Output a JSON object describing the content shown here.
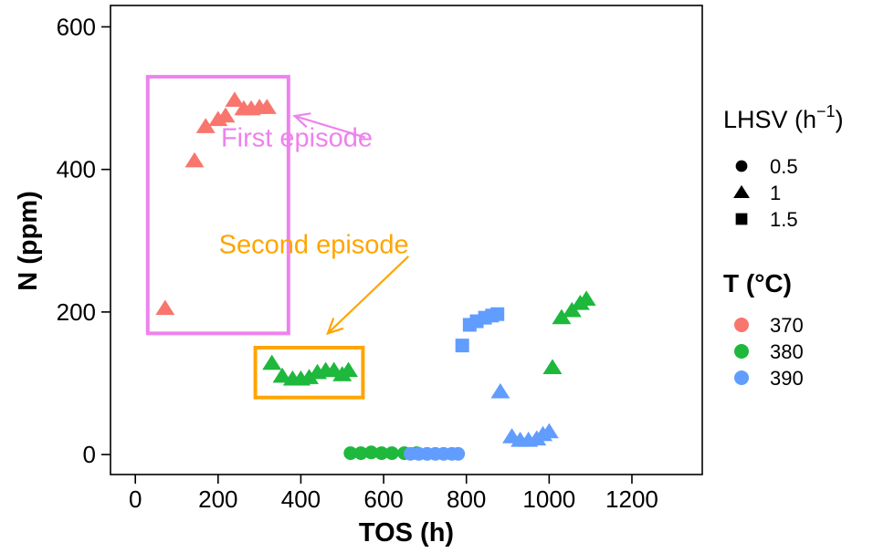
{
  "chart_data": {
    "type": "scatter",
    "xlabel": "TOS (h)",
    "ylabel": "N (ppm)",
    "xlim": [
      -60,
      1370
    ],
    "ylim": [
      -28,
      630
    ],
    "xticks": [
      0,
      200,
      400,
      600,
      800,
      1000,
      1200
    ],
    "yticks": [
      0,
      200,
      400,
      600
    ],
    "grid": false,
    "legend_position": "right",
    "shape_legend": {
      "title": "LHSV (h",
      "title_sup": "−1",
      "title_end": ")",
      "items": [
        {
          "label": "0.5",
          "shape": "circle"
        },
        {
          "label": "1",
          "shape": "triangle"
        },
        {
          "label": "1.5",
          "shape": "square"
        }
      ]
    },
    "color_legend": {
      "title": "T (°C)",
      "items": [
        {
          "label": "370",
          "color": "#F8766D"
        },
        {
          "label": "380",
          "color": "#1DB83C"
        },
        {
          "label": "390",
          "color": "#619CFF"
        }
      ]
    },
    "annotations": [
      {
        "text": "First episode",
        "color": "#EE82EE",
        "box": {
          "x0": 30,
          "x1": 370,
          "y0": 170,
          "y1": 530
        },
        "text_at": {
          "x": 560,
          "y": 445
        },
        "arrow_from": {
          "x": 555,
          "y": 445
        },
        "arrow_to": {
          "x": 385,
          "y": 475
        }
      },
      {
        "text": "Second episode",
        "color": "#FFA500",
        "box": {
          "x0": 290,
          "x1": 550,
          "y0": 80,
          "y1": 150
        },
        "text_at": {
          "x": 555,
          "y": 295
        },
        "arrow_from": {
          "x": 660,
          "y": 278
        },
        "arrow_to": {
          "x": 465,
          "y": 170
        }
      }
    ],
    "series": [
      {
        "T": "370",
        "LHSV": "1",
        "shape": "triangle",
        "color": "#F8766D",
        "x": [
          72,
          143,
          170,
          200,
          218,
          240,
          262,
          280,
          300,
          318
        ],
        "y": [
          205,
          412,
          460,
          470,
          475,
          497,
          485,
          485,
          487,
          487
        ]
      },
      {
        "T": "380",
        "LHSV": "0.5",
        "shape": "circle",
        "color": "#1DB83C",
        "x": [
          520,
          545,
          570,
          595,
          620,
          650,
          680
        ],
        "y": [
          2,
          2,
          3,
          2,
          2,
          2,
          2
        ]
      },
      {
        "T": "380",
        "LHSV": "1",
        "shape": "triangle",
        "color": "#1DB83C",
        "x": [
          330,
          355,
          380,
          400,
          420,
          440,
          460,
          480,
          500,
          515,
          1008,
          1030,
          1055,
          1075,
          1090
        ],
        "y": [
          128,
          110,
          106,
          106,
          108,
          115,
          118,
          118,
          112,
          118,
          122,
          192,
          202,
          212,
          218
        ]
      },
      {
        "T": "390",
        "LHSV": "0.5",
        "shape": "circle",
        "color": "#619CFF",
        "x": [
          665,
          685,
          705,
          725,
          745,
          765,
          780
        ],
        "y": [
          1,
          1,
          1,
          1,
          1,
          1,
          1
        ]
      },
      {
        "T": "390",
        "LHSV": "1",
        "shape": "triangle",
        "color": "#619CFF",
        "x": [
          882,
          910,
          930,
          950,
          970,
          985,
          1000
        ],
        "y": [
          88,
          25,
          20,
          20,
          22,
          28,
          32
        ]
      },
      {
        "T": "390",
        "LHSV": "1.5",
        "shape": "square",
        "color": "#619CFF",
        "x": [
          790,
          808,
          825,
          845,
          862,
          875
        ],
        "y": [
          153,
          182,
          187,
          192,
          195,
          197
        ]
      }
    ]
  }
}
